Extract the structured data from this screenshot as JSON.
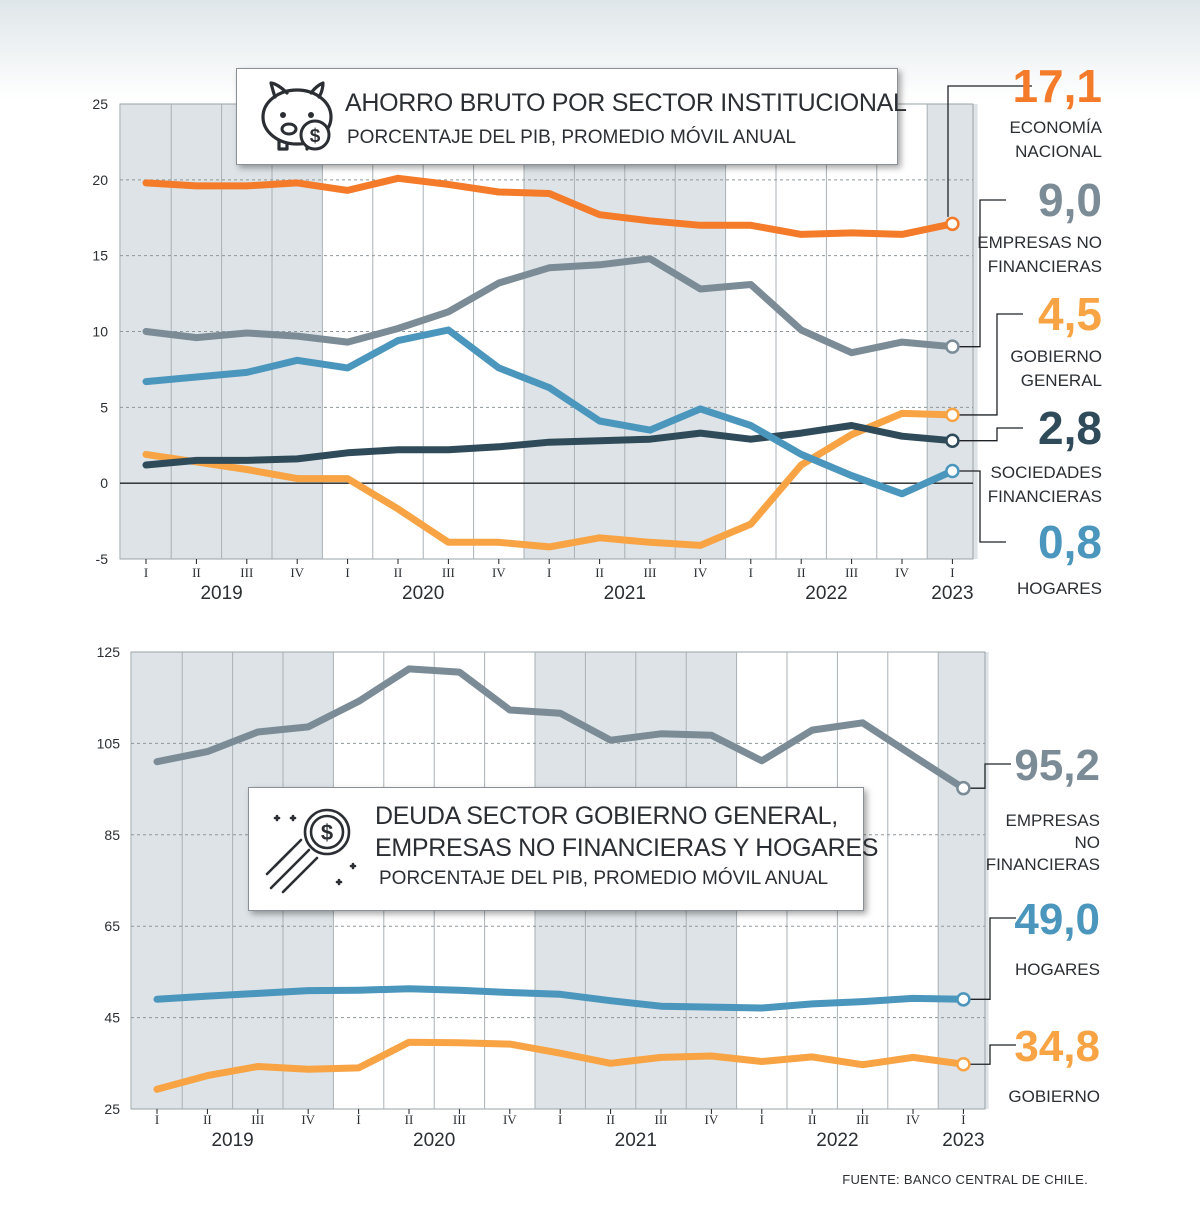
{
  "source": "FUENTE: BANCO CENTRAL DE CHILE.",
  "colors": {
    "orange_dark": "#f47b2a",
    "orange_light": "#f8a344",
    "gray_blue": "#7b8c97",
    "blue": "#4b96bd",
    "navy": "#2f4b5a",
    "shade": "#dde3e6"
  },
  "chart_data": [
    {
      "type": "line",
      "title": "AHORRO BRUTO POR SECTOR INSTITUCIONAL",
      "subtitle": "PORCENTAJE DEL PIB, PROMEDIO MÓVIL ANUAL",
      "icon": "piggy-bank-icon",
      "quarters": [
        "I",
        "II",
        "III",
        "IV",
        "I",
        "II",
        "III",
        "IV",
        "I",
        "II",
        "III",
        "IV",
        "I",
        "II",
        "III",
        "IV",
        "I"
      ],
      "years": [
        "2019",
        "2020",
        "2021",
        "2022",
        "2023"
      ],
      "ylim": [
        -5,
        25
      ],
      "yticks": [
        "25",
        "20",
        "15",
        "10",
        "5",
        "0",
        "-5"
      ],
      "series": [
        {
          "name": "ECONOMÍA NACIONAL",
          "value_label": "17,1",
          "label_lines": [
            "ECONOMÍA",
            "NACIONAL"
          ],
          "color": "#f47b2a",
          "values": [
            19.8,
            19.6,
            19.6,
            19.8,
            19.3,
            20.1,
            19.7,
            19.2,
            19.1,
            17.7,
            17.3,
            17.0,
            17.0,
            16.4,
            16.5,
            16.4,
            17.1
          ]
        },
        {
          "name": "EMPRESAS NO FINANCIERAS",
          "value_label": "9,0",
          "label_lines": [
            "EMPRESAS NO",
            "FINANCIERAS"
          ],
          "color": "#7b8c97",
          "values": [
            10.0,
            9.6,
            9.9,
            9.7,
            9.3,
            10.2,
            11.3,
            13.2,
            14.2,
            14.4,
            14.8,
            12.8,
            13.1,
            10.1,
            8.6,
            9.3,
            9.0
          ]
        },
        {
          "name": "GOBIERNO GENERAL",
          "value_label": "4,5",
          "label_lines": [
            "GOBIERNO",
            "GENERAL"
          ],
          "color": "#f8a344",
          "values": [
            1.9,
            1.4,
            0.9,
            0.3,
            0.3,
            -1.7,
            -3.9,
            -3.9,
            -4.2,
            -3.6,
            -3.9,
            -4.1,
            -2.7,
            1.2,
            3.2,
            4.6,
            4.5
          ]
        },
        {
          "name": "SOCIEDADES FINANCIERAS",
          "value_label": "2,8",
          "label_lines": [
            "SOCIEDADES",
            "FINANCIERAS"
          ],
          "color": "#2f4b5a",
          "values": [
            1.2,
            1.5,
            1.5,
            1.6,
            2.0,
            2.2,
            2.2,
            2.4,
            2.7,
            2.8,
            2.9,
            3.3,
            2.9,
            3.3,
            3.8,
            3.1,
            2.8
          ]
        },
        {
          "name": "HOGARES",
          "value_label": "0,8",
          "label_lines": [
            "HOGARES"
          ],
          "color": "#4b96bd",
          "values": [
            6.7,
            7.0,
            7.3,
            8.1,
            7.6,
            9.4,
            10.1,
            7.6,
            6.3,
            4.1,
            3.5,
            4.9,
            3.8,
            1.9,
            0.5,
            -0.7,
            0.8
          ]
        }
      ]
    },
    {
      "type": "line",
      "title_lines": [
        "DEUDA SECTOR GOBIERNO GENERAL,",
        "EMPRESAS NO FINANCIERAS Y HOGARES"
      ],
      "subtitle": "PORCENTAJE DEL PIB, PROMEDIO MÓVIL ANUAL",
      "icon": "flying-coin-icon",
      "quarters": [
        "I",
        "II",
        "III",
        "IV",
        "I",
        "II",
        "III",
        "IV",
        "I",
        "II",
        "III",
        "IV",
        "I",
        "II",
        "III",
        "IV",
        "I"
      ],
      "years": [
        "2019",
        "2020",
        "2021",
        "2022",
        "2023"
      ],
      "ylim": [
        25,
        125
      ],
      "yticks": [
        "125",
        "105",
        "85",
        "65",
        "45",
        "25"
      ],
      "series": [
        {
          "name": "EMPRESAS NO FINANCIERAS",
          "value_label": "95,2",
          "label_lines": [
            "EMPRESAS",
            "NO",
            "FINANCIERAS"
          ],
          "color": "#7b8c97",
          "values": [
            101.0,
            103.2,
            107.5,
            108.6,
            114.2,
            121.3,
            120.6,
            112.3,
            111.6,
            105.7,
            107.1,
            106.8,
            101.2,
            107.9,
            109.5,
            102.3,
            95.2
          ]
        },
        {
          "name": "HOGARES",
          "value_label": "49,0",
          "label_lines": [
            "HOGARES"
          ],
          "color": "#4b96bd",
          "values": [
            49.0,
            49.7,
            50.3,
            50.9,
            51.0,
            51.3,
            51.0,
            50.5,
            50.1,
            48.7,
            47.5,
            47.3,
            47.1,
            48.0,
            48.5,
            49.2,
            49.0
          ]
        },
        {
          "name": "GOBIERNO",
          "value_label": "34,8",
          "label_lines": [
            "GOBIERNO"
          ],
          "color": "#f8a344",
          "values": [
            29.3,
            32.3,
            34.3,
            33.7,
            34.0,
            39.6,
            39.5,
            39.2,
            37.2,
            35.0,
            36.3,
            36.6,
            35.4,
            36.4,
            34.7,
            36.3,
            34.8
          ]
        }
      ]
    }
  ]
}
